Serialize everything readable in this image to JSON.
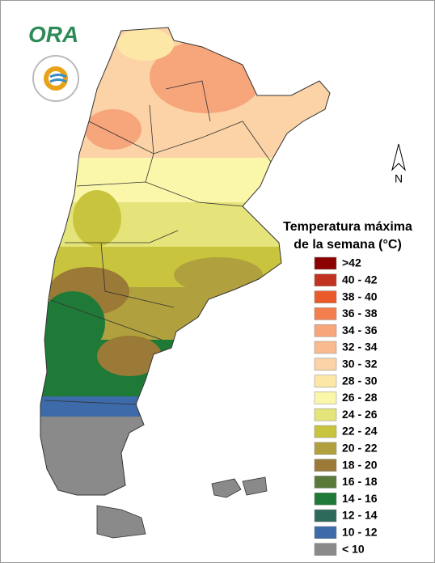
{
  "logo": {
    "text": "ORA"
  },
  "north_label": "N",
  "legend": {
    "title_lines": [
      "Temperatura máxima",
      "de la semana (°C)"
    ],
    "items": [
      {
        "label": ">42",
        "color": "#8b0000"
      },
      {
        "label": "40 - 42",
        "color": "#c23220"
      },
      {
        "label": "38 - 40",
        "color": "#ea5a2b"
      },
      {
        "label": "36 - 38",
        "color": "#f47f4e"
      },
      {
        "label": "34 - 36",
        "color": "#f7a57b"
      },
      {
        "label": "32 - 34",
        "color": "#f9ba8f"
      },
      {
        "label": "30 - 32",
        "color": "#fbd3a6"
      },
      {
        "label": "28 - 30",
        "color": "#fde7a6"
      },
      {
        "label": "26 - 28",
        "color": "#fbf7aa"
      },
      {
        "label": "24 - 26",
        "color": "#e5e47a"
      },
      {
        "label": "22 - 24",
        "color": "#c9c43d"
      },
      {
        "label": "20 - 22",
        "color": "#b0a13e"
      },
      {
        "label": "18 - 20",
        "color": "#9b7936"
      },
      {
        "label": "16 - 18",
        "color": "#5a7a3a"
      },
      {
        "label": "14 - 16",
        "color": "#1f7a38"
      },
      {
        "label": "12 - 14",
        "color": "#2d6a5a"
      },
      {
        "label": "10 - 12",
        "color": "#3d6aa8"
      },
      {
        "label": "< 10",
        "color": "#8a8a8a"
      }
    ]
  }
}
